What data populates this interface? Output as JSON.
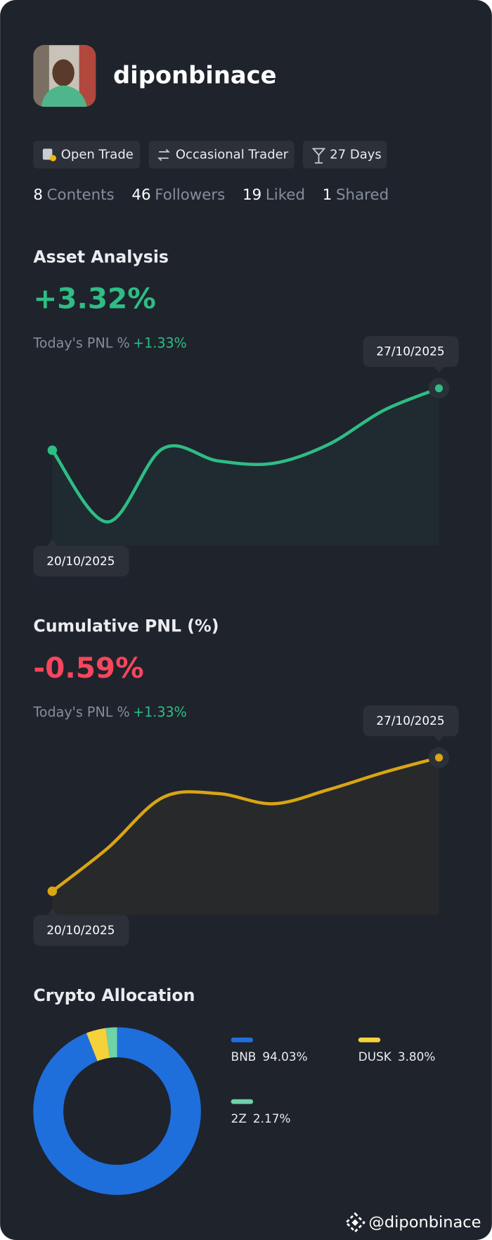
{
  "profile": {
    "username": "diponbinace",
    "tags": [
      "Open Trade",
      "Occasional Trader",
      "27 Days"
    ],
    "stats": [
      {
        "value": "8",
        "label": "Contents"
      },
      {
        "value": "46",
        "label": "Followers"
      },
      {
        "value": "19",
        "label": "Liked"
      },
      {
        "value": "1",
        "label": "Shared"
      }
    ]
  },
  "asset_analysis": {
    "title": "Asset Analysis",
    "value": "+3.32%",
    "today_label": "Today's PNL %",
    "today_value": "+1.33%",
    "chart": {
      "type": "line",
      "x": [
        "20/10/2025",
        null,
        null,
        null,
        null,
        null,
        null,
        "27/10/2025"
      ],
      "values": [
        0,
        -3.84,
        0.09,
        -0.57,
        -0.7,
        0.31,
        2.14,
        3.32
      ],
      "color": "#2ebd85"
    }
  },
  "cumulative_pnl": {
    "title": "Cumulative PNL (%)",
    "value": "-0.59%",
    "today_label": "Today's PNL %",
    "today_value": "+1.33%",
    "chart": {
      "type": "line",
      "x": [
        "20/10/2025",
        null,
        null,
        null,
        null,
        null,
        null,
        "27/10/2025"
      ],
      "values": [
        -8.06,
        -5.66,
        -2.82,
        -2.6,
        -3.17,
        -2.38,
        -1.42,
        -0.59
      ],
      "color": "#d9a514"
    }
  },
  "crypto_allocation": {
    "title": "Crypto Allocation",
    "chart": {
      "type": "donut",
      "categories": [
        "BNB",
        "DUSK",
        "2Z"
      ],
      "values": [
        94.03,
        3.8,
        2.17
      ],
      "value_labels": [
        "94.03%",
        "3.80%",
        "2.17%"
      ],
      "colors": [
        "#1e6fdc",
        "#f5d13b",
        "#6fd3a8"
      ]
    }
  },
  "footer": {
    "handle": "@diponbinace"
  }
}
